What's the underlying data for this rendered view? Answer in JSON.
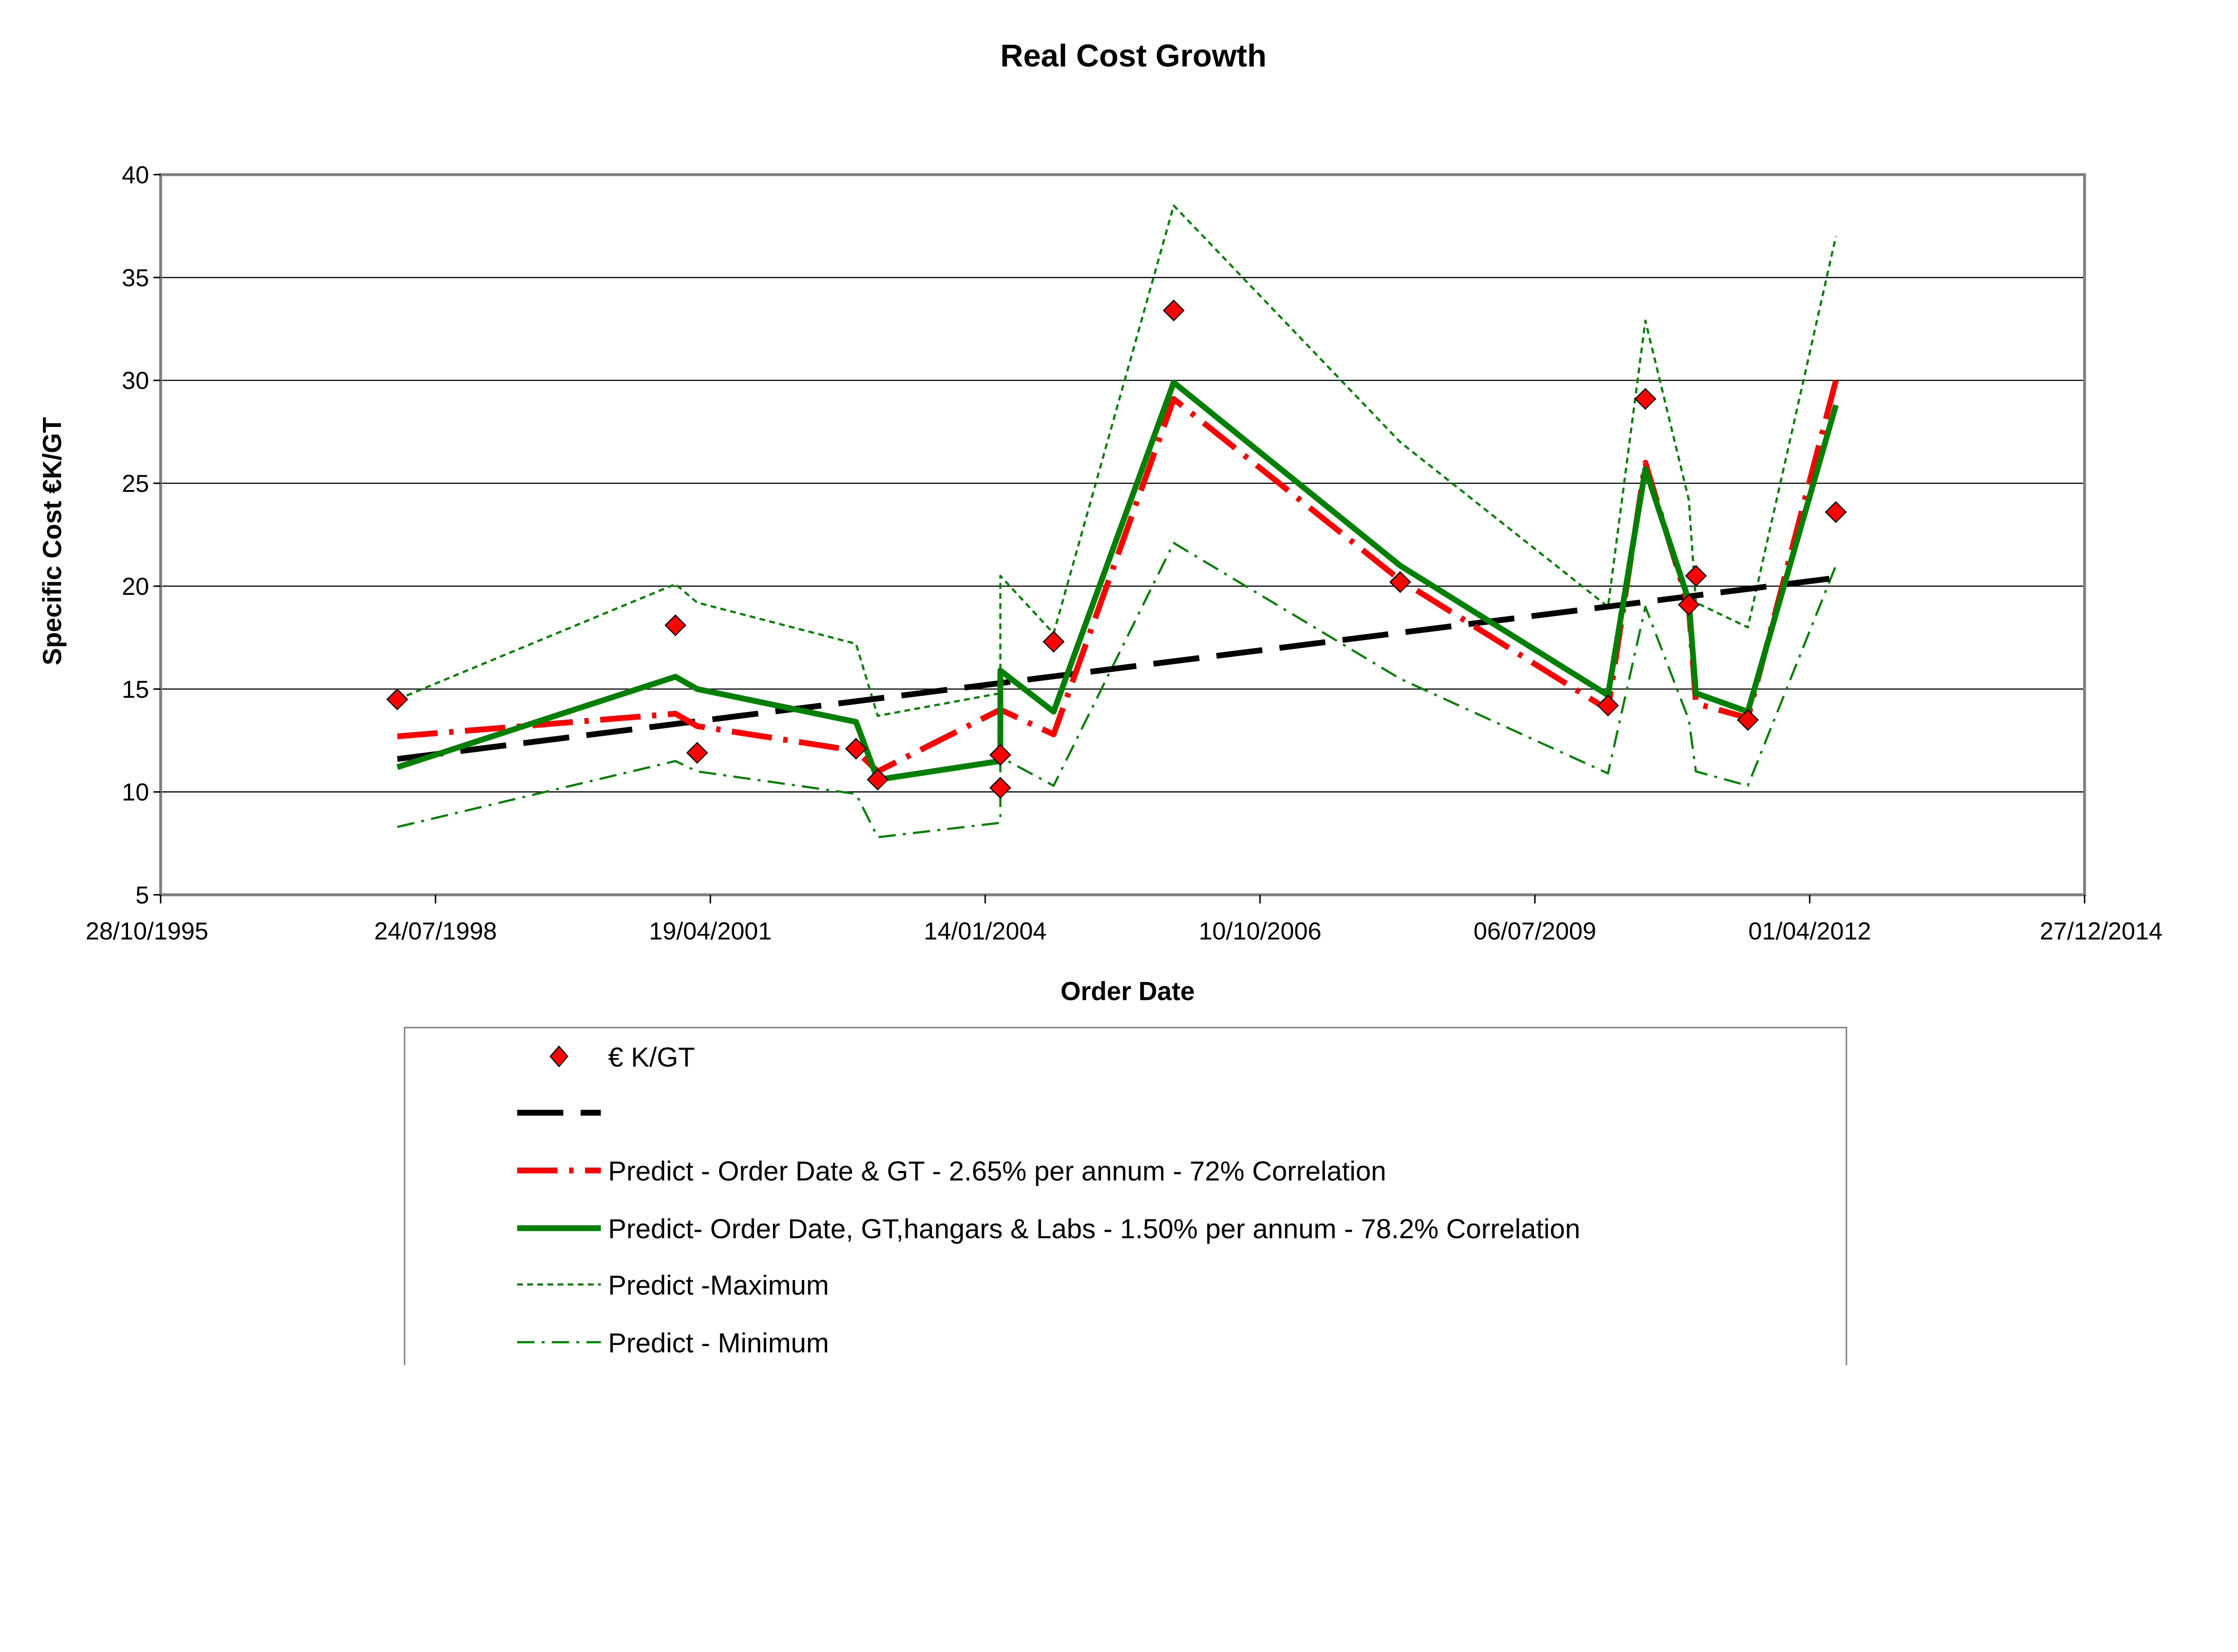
{
  "chart_data": {
    "type": "line",
    "title": "Real Cost Growth",
    "xlabel": "Order Date",
    "ylabel": "Specific Cost €K/GT",
    "xlim": [
      "1995-10-28",
      "2014-12-27"
    ],
    "ylim": [
      5,
      40
    ],
    "x_ticks": [
      "28/10/1995",
      "24/07/1998",
      "19/04/2001",
      "14/01/2004",
      "10/10/2006",
      "06/07/2009",
      "01/04/2012",
      "27/12/2014"
    ],
    "y_ticks": [
      5,
      10,
      15,
      20,
      25,
      30,
      35,
      40
    ],
    "grid": "horizontal",
    "legend_position": "bottom",
    "x": [
      "1998-03-07",
      "2000-12-13",
      "2001-03-02",
      "2002-10-01",
      "2002-12-19",
      "2004-03-09",
      "2004-03-09",
      "2004-09-19",
      "2005-11-30",
      "2008-03-03",
      "2010-03-29",
      "2010-08-12",
      "2011-01-17",
      "2011-02-12",
      "2011-08-20",
      "2012-07-05"
    ],
    "series": [
      {
        "name": "€ K/GT",
        "style": "marker",
        "color": "#ff0000",
        "values": [
          14.5,
          18.1,
          11.9,
          12.1,
          10.6,
          11.8,
          10.2,
          17.3,
          33.4,
          20.2,
          14.2,
          29.1,
          19.1,
          20.5,
          13.5,
          23.6
        ]
      },
      {
        "name": "",
        "style": "trend-dashed",
        "color": "#000000",
        "values": [
          11.6,
          null,
          null,
          null,
          null,
          null,
          null,
          null,
          null,
          null,
          null,
          null,
          null,
          null,
          null,
          20.4
        ]
      },
      {
        "name": "Predict - Order Date & GT -  2.65% per annum -  72% Correlation",
        "style": "dash-dot",
        "color": "#ff0000",
        "values": [
          12.7,
          13.8,
          13.2,
          12.0,
          11.0,
          14.0,
          14.0,
          12.8,
          29.1,
          20.3,
          14.0,
          26.0,
          19.0,
          14.3,
          13.6,
          30.0
        ]
      },
      {
        "name": "Predict- Order Date, GT,hangars & Labs -  1.50% per annum -  78.2% Correlation",
        "style": "solid",
        "color": "#008000",
        "values": [
          11.2,
          15.6,
          15.0,
          13.4,
          10.6,
          11.5,
          15.9,
          13.9,
          29.9,
          21.0,
          14.7,
          25.7,
          19.3,
          14.8,
          13.9,
          28.8
        ]
      },
      {
        "name": "Predict -Maximum",
        "style": "dotted",
        "color": "#008000",
        "values": [
          14.5,
          20.1,
          19.2,
          17.2,
          13.7,
          14.8,
          20.5,
          17.7,
          38.5,
          27.0,
          19.0,
          32.9,
          24.2,
          19.2,
          18.0,
          37.0
        ]
      },
      {
        "name": "Predict - Minimum",
        "style": "dash-dot-thin",
        "color": "#008000",
        "values": [
          8.3,
          11.5,
          11.0,
          9.9,
          7.8,
          8.5,
          11.7,
          10.3,
          22.1,
          15.5,
          10.9,
          19.0,
          13.5,
          11.0,
          10.3,
          21.0
        ]
      }
    ]
  }
}
